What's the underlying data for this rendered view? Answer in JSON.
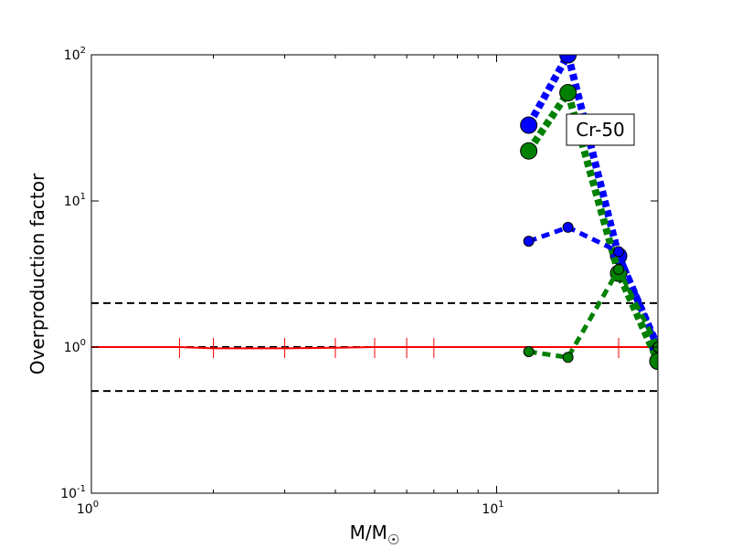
{
  "chart_data": {
    "type": "line",
    "xlabel": "M/M",
    "xlabel_sub": "☉",
    "ylabel": "Overproduction factor",
    "xscale": "log",
    "yscale": "log",
    "xlim": [
      1,
      25
    ],
    "ylim": [
      0.1,
      100
    ],
    "x_ticks": [
      {
        "value": 1,
        "base": "10",
        "exp": "0"
      },
      {
        "value": 10,
        "base": "10",
        "exp": "1"
      }
    ],
    "y_ticks": [
      {
        "value": 0.1,
        "base": "10",
        "exp": "-1"
      },
      {
        "value": 1,
        "base": "10",
        "exp": "0"
      },
      {
        "value": 10,
        "base": "10",
        "exp": "1"
      },
      {
        "value": 100,
        "base": "10",
        "exp": "2"
      }
    ],
    "annotation": {
      "text": "Cr-50",
      "x": 17.5,
      "y": 30
    },
    "reference_lines": [
      {
        "y": 2.0,
        "color": "#000000",
        "style": "dashed"
      },
      {
        "y": 1.0,
        "color": "#000000",
        "style": "dashed"
      },
      {
        "y": 0.5,
        "color": "#000000",
        "style": "dashed"
      }
    ],
    "reference_series": {
      "color": "#ff0000",
      "x": [
        1,
        1.65,
        2,
        3,
        4,
        5,
        6,
        7,
        8,
        10,
        12,
        15,
        20,
        25
      ],
      "y": [
        1.0,
        1.0,
        0.98,
        0.98,
        0.99,
        1.0,
        1.0,
        1.0,
        1.0,
        1.0,
        1.0,
        1.0,
        1.0,
        1.0
      ],
      "error_x": [
        1.65,
        2,
        3,
        4,
        5,
        6,
        7,
        20
      ]
    },
    "series": [
      {
        "color": "#0000ff",
        "style": "dotted-thick",
        "marker_size": "large",
        "x": [
          12,
          15,
          20,
          25
        ],
        "y": [
          33,
          100,
          4.2,
          1.0
        ]
      },
      {
        "color": "#008000",
        "style": "dotted-thick",
        "marker_size": "large",
        "x": [
          12,
          15,
          20,
          25
        ],
        "y": [
          22,
          55,
          3.2,
          0.8
        ]
      },
      {
        "color": "#0000ff",
        "style": "dashed",
        "marker_size": "small",
        "x": [
          12,
          15,
          20,
          25
        ],
        "y": [
          5.3,
          6.6,
          4.5,
          1.0
        ]
      },
      {
        "color": "#008000",
        "style": "dashed",
        "marker_size": "small",
        "x": [
          12,
          15,
          20,
          25
        ],
        "y": [
          0.93,
          0.85,
          3.4,
          1.0
        ]
      }
    ]
  }
}
